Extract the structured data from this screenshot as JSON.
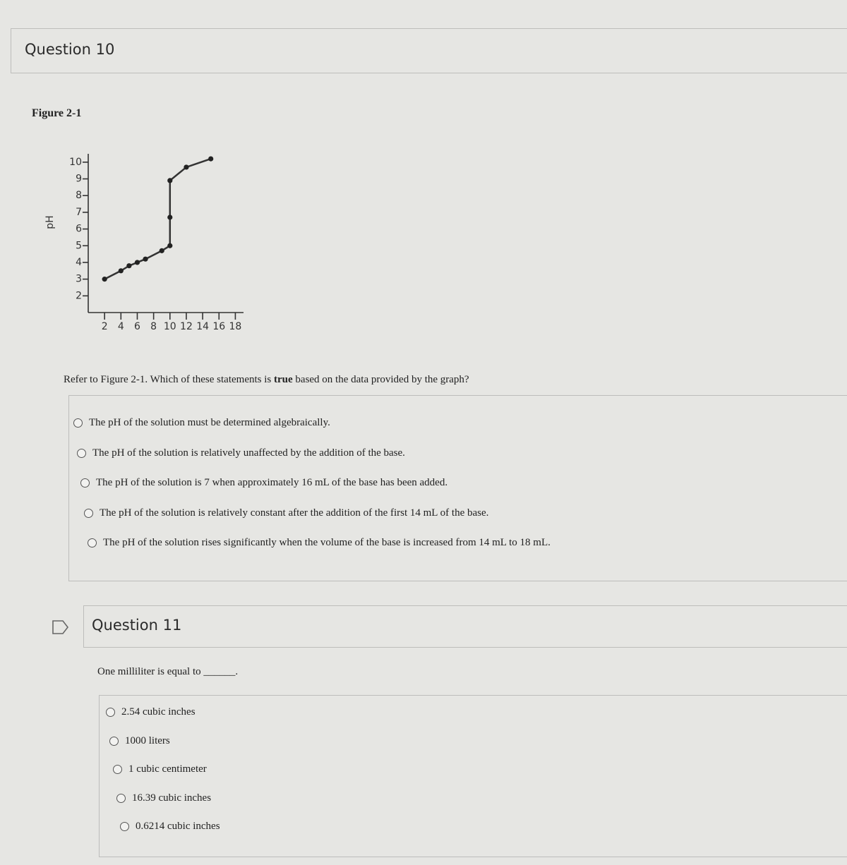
{
  "question10": {
    "title": "Question 10",
    "figure_label": "Figure 2-1",
    "chart": {
      "type": "line",
      "y_label": "pH",
      "x": [
        2,
        4,
        5,
        6,
        7,
        9,
        10,
        10,
        10,
        12,
        15
      ],
      "values": [
        3,
        3.5,
        3.8,
        4,
        4.2,
        4.7,
        5,
        6.7,
        8.9,
        9.7,
        10.2
      ],
      "xlim": [
        0,
        19
      ],
      "xticks": [
        2,
        4,
        6,
        8,
        10,
        12,
        14,
        16,
        18
      ],
      "ylim": [
        1,
        10.5
      ],
      "yticks": [
        2,
        3,
        4,
        5,
        6,
        7,
        8,
        9,
        10
      ]
    },
    "prompt": [
      "Refer to Figure 2-1. Which of these statements is ",
      "true",
      " based on the data provided by the graph?"
    ],
    "options": [
      "The pH of the solution must be determined algebraically.",
      "The pH of the solution is relatively unaffected by the addition of the base.",
      "The pH of the solution is 7 when approximately 16 mL of the base has been added.",
      "The pH of the solution is relatively constant after the addition of the first 14 mL of the base.",
      "The pH of the solution rises significantly when the volume of the base is increased from 14 mL to 18 mL."
    ]
  },
  "question11": {
    "title": "Question 11",
    "prompt": "One milliliter is equal to ______.",
    "options": [
      "2.54 cubic inches",
      "1000 liters",
      "1 cubic centimeter",
      "16.39 cubic inches",
      "0.6214 cubic inches"
    ]
  }
}
